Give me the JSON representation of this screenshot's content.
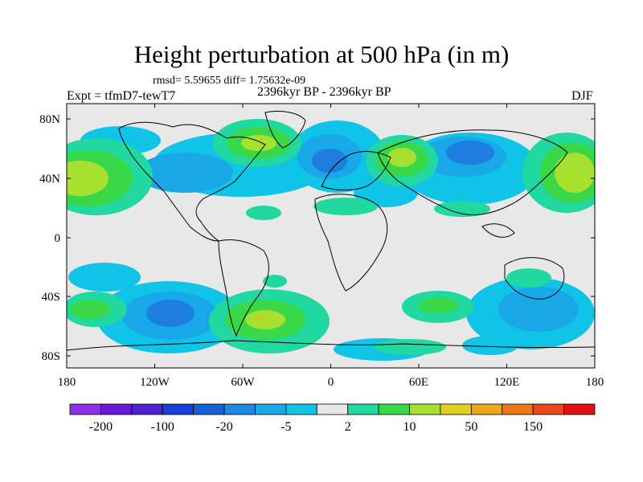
{
  "title": "Height perturbation at 500 hPa (in m)",
  "stats": "rmsd= 5.59655 diff= 1.75632e-09",
  "period": "2396kyr BP - 2396kyr BP",
  "experiment": "Expt = tfmD7-tewT7",
  "season": "DJF",
  "axes": {
    "lon_ticks": [
      "180",
      "120W",
      "60W",
      "0",
      "60E",
      "120E",
      "180"
    ],
    "lat_ticks": [
      "80N",
      "40N",
      "0",
      "40S",
      "80S"
    ]
  },
  "colorbar": {
    "colors": [
      "#8d2ee8",
      "#6a18d8",
      "#4a22d0",
      "#1a3ed8",
      "#1660dc",
      "#1e88e0",
      "#18a8e8",
      "#10c4e8",
      "#e8e8e8",
      "#20d8a0",
      "#38d848",
      "#a8e030",
      "#e0d020",
      "#e8a818",
      "#e87818",
      "#e84818",
      "#e01010"
    ],
    "labels": [
      "-200",
      "-100",
      "-20",
      "-5",
      "2",
      "10",
      "50",
      "150"
    ]
  },
  "palette": {
    "neg_light": "#10c4e8",
    "neg_mid": "#18a8e8",
    "neg_strong": "#1e7ee0",
    "neutral": "#e8e8e8",
    "pos_light": "#20d8a0",
    "pos_mid": "#38d848",
    "pos_strong": "#a8e030",
    "pos_max": "#e0c020"
  }
}
